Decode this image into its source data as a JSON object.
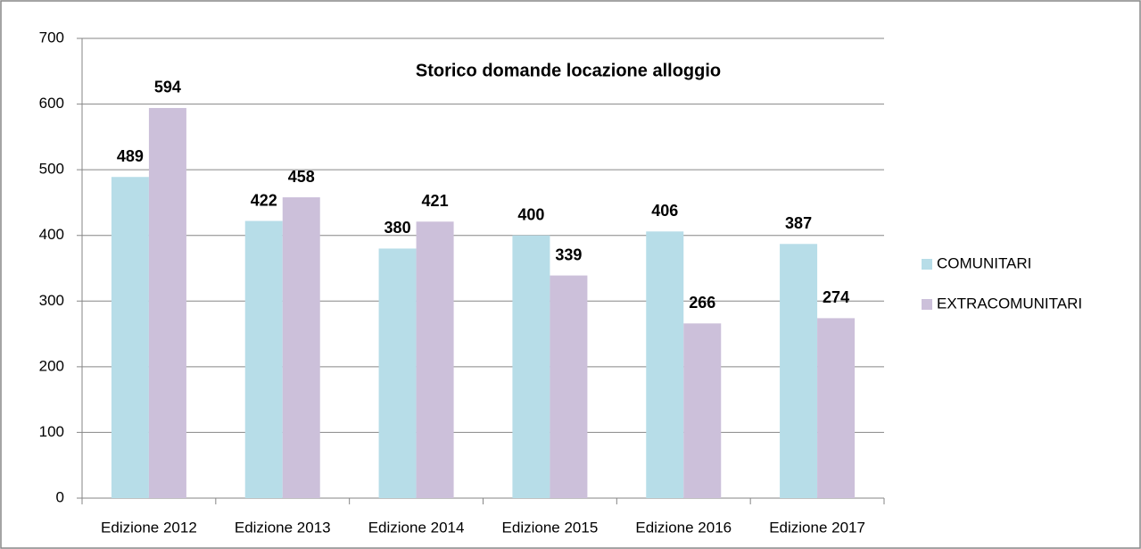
{
  "chart_data": {
    "type": "bar",
    "title": "Storico domande locazione alloggio",
    "categories": [
      "Edizione 2012",
      "Edizione 2013",
      "Edizione 2014",
      "Edizione 2015",
      "Edizione 2016",
      "Edizione 2017"
    ],
    "series": [
      {
        "name": "COMUNITARI",
        "color": "#b7dde8",
        "values": [
          489,
          422,
          380,
          400,
          406,
          387
        ]
      },
      {
        "name": "EXTRACOMUNITARI",
        "color": "#ccc0da",
        "values": [
          594,
          458,
          421,
          339,
          266,
          274
        ]
      }
    ],
    "ylim": [
      0,
      700
    ],
    "yticks": [
      0,
      100,
      200,
      300,
      400,
      500,
      600,
      700
    ],
    "grid": true,
    "legend": "right"
  }
}
